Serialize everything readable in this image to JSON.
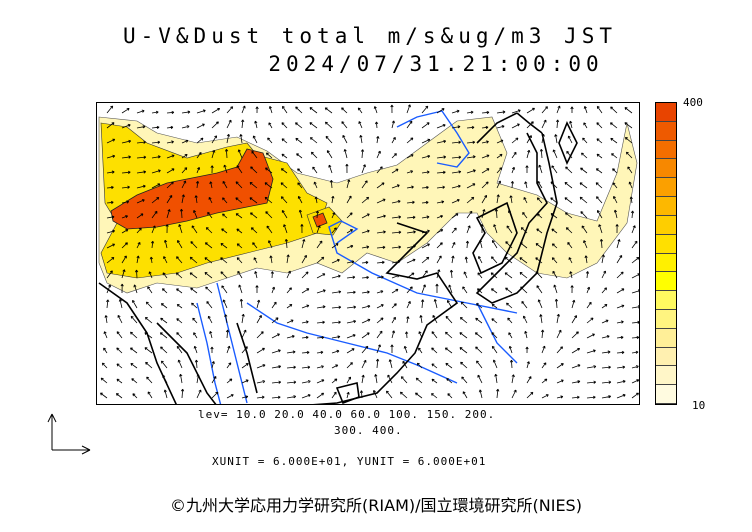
{
  "title": {
    "line1": "U-V&Dust total m/s&ug/m3 JST",
    "line2": "2024/07/31.21:00:00"
  },
  "colorbar": {
    "max_label": "400",
    "min_label": "10",
    "colors": [
      "#e84400",
      "#ee5a00",
      "#f36e00",
      "#f78800",
      "#fba000",
      "#fdb800",
      "#fece00",
      "#ffe000",
      "#fff000",
      "#ffff00",
      "#fffa60",
      "#fff480",
      "#ffef98",
      "#fff0b0",
      "#fff6c8",
      "#fffbe0"
    ]
  },
  "levels": {
    "line1": "lev= 10.0 20.0 40.0 60.0 100. 150. 200.",
    "line2": "300. 400."
  },
  "units": "XUNIT = 6.000E+01, YUNIT = 6.000E+01",
  "credit": "©九州大学応用力学研究所(RIAM)/国立環境研究所(NIES)",
  "colors": {
    "dust_high": "#f05000",
    "dust_mid": "#fde000",
    "dust_low": "#fff6b8",
    "rivers": "#1a5cff",
    "coast": "#000000",
    "wind": "#000000"
  },
  "legend_icons": [
    "reference-vector-icon"
  ]
}
